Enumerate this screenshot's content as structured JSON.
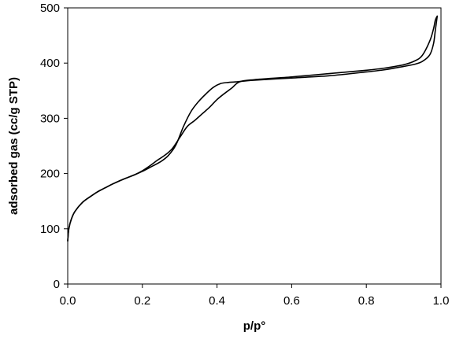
{
  "chart_data": {
    "type": "line",
    "title": "",
    "xlabel": "p/p°",
    "ylabel": "adsorbed gas (cc/g STP)",
    "xlim": [
      0,
      1.0
    ],
    "ylim": [
      0,
      500
    ],
    "x_ticks": [
      0.0,
      0.2,
      0.4,
      0.6,
      0.8,
      1.0
    ],
    "x_tick_labels": [
      "0.0",
      "0.2",
      "0.4",
      "0.6",
      "0.8",
      "1.0"
    ],
    "y_ticks": [
      0,
      100,
      200,
      300,
      400,
      500
    ],
    "y_tick_labels": [
      "0",
      "100",
      "200",
      "300",
      "400",
      "500"
    ],
    "grid": false,
    "legend": "none",
    "line_color": "#000000",
    "series": [
      {
        "x": [
          0.0,
          0.003,
          0.01,
          0.02,
          0.04,
          0.06,
          0.08,
          0.1,
          0.12,
          0.15,
          0.18,
          0.2,
          0.22,
          0.25,
          0.27,
          0.29,
          0.31,
          0.33,
          0.35,
          0.37,
          0.39,
          0.41,
          0.43,
          0.45,
          0.5,
          0.6,
          0.7,
          0.8,
          0.85,
          0.9,
          0.93,
          0.95,
          0.97,
          0.98,
          0.985,
          0.99
        ],
        "values": [
          78,
          100,
          118,
          132,
          148,
          158,
          167,
          174,
          181,
          190,
          198,
          204,
          211,
          222,
          233,
          252,
          285,
          312,
          330,
          344,
          356,
          363,
          365,
          366,
          369,
          373,
          377,
          384,
          388,
          394,
          398,
          403,
          415,
          435,
          460,
          485
        ]
      },
      {
        "x": [
          0.99,
          0.985,
          0.98,
          0.97,
          0.95,
          0.93,
          0.9,
          0.85,
          0.8,
          0.7,
          0.6,
          0.5,
          0.46,
          0.44,
          0.42,
          0.4,
          0.38,
          0.36,
          0.34,
          0.32,
          0.3,
          0.28,
          0.26,
          0.24,
          0.22,
          0.2,
          0.18,
          0.15,
          0.12,
          0.1,
          0.08,
          0.06,
          0.04,
          0.02,
          0.01,
          0.003,
          0.0
        ],
        "values": [
          485,
          478,
          462,
          440,
          414,
          404,
          397,
          391,
          387,
          381,
          375,
          370,
          366,
          355,
          345,
          334,
          320,
          308,
          296,
          285,
          265,
          245,
          233,
          224,
          214,
          205,
          198,
          190,
          181,
          174,
          167,
          158,
          148,
          132,
          118,
          100,
          78
        ]
      }
    ]
  }
}
